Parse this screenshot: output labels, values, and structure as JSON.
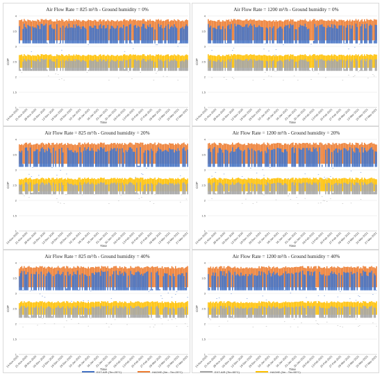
{
  "legend": [
    {
      "label": "EXT-AIR (Tin=25°C)",
      "color": "#4472c4"
    },
    {
      "label": "HAGHE (3m - Tin=25°C)",
      "color": "#ed7d31"
    },
    {
      "label": "EXT-AIR (Tin=55°C)",
      "color": "#a5a5a5"
    },
    {
      "label": "HAGHE (3m - Tin=55°C)",
      "color": "#ffc000"
    }
  ],
  "chart_data": [
    {
      "type": "bar",
      "title": "Air Flow Rate = 825 m³/h - Ground humidity = 0%",
      "xlabel": "Time",
      "ylabel": "COP",
      "ylim": [
        1,
        4
      ],
      "yticks": [
        "1",
        "1.5",
        "2",
        "2.5",
        "3",
        "3.5",
        "4"
      ],
      "x_tick_labels": [
        "14-Nov-2020",
        "21-Nov-2020",
        "28-Nov-2020",
        "05-Dec-2020",
        "12-Dec-2020",
        "19-Dec-2020",
        "26-Dec-2020",
        "02-Jan-2021",
        "09-Jan-2021",
        "16-Jan-2021",
        "23-Jan-2021",
        "30-Jan-2021",
        "06-Feb-2021",
        "13-Feb-2021",
        "20-Feb-2021",
        "27-Feb-2021",
        "06-Mar-2021",
        "13-Mar-2021",
        "20-Mar-2021",
        "27-Mar-2021"
      ],
      "grid": true,
      "series": [
        {
          "name": "EXT-AIR (Tin=25°C)",
          "color": "#4472c4",
          "typical_range": [
            3.2,
            3.75
          ],
          "min": 2.5
        },
        {
          "name": "HAGHE (3m - Tin=25°C)",
          "color": "#ed7d31",
          "typical_range": [
            3.65,
            3.9
          ]
        },
        {
          "name": "EXT-AIR (Tin=55°C)",
          "color": "#a5a5a5",
          "typical_range": [
            2.3,
            2.6
          ],
          "min": 1.9
        },
        {
          "name": "HAGHE (3m - Tin=55°C)",
          "color": "#ffc000",
          "typical_range": [
            2.55,
            2.75
          ]
        }
      ]
    },
    {
      "type": "bar",
      "title": "Air Flow Rate = 1200 m³/h - Ground humidity = 0%",
      "xlabel": "Time",
      "ylabel": "COP",
      "ylim": [
        1,
        4
      ],
      "yticks": [
        "1",
        "1.5",
        "2",
        "2.5",
        "3",
        "3.5",
        "4"
      ],
      "x_tick_labels": [
        "14-Nov-2020",
        "21-Nov-2020",
        "28-Nov-2020",
        "05-Dec-2020",
        "12-Dec-2020",
        "19-Dec-2020",
        "26-Dec-2020",
        "02-Jan-2021",
        "09-Jan-2021",
        "16-Jan-2021",
        "23-Jan-2021",
        "30-Jan-2021",
        "06-Feb-2021",
        "13-Feb-2021",
        "20-Feb-2021",
        "27-Feb-2021",
        "06-Mar-2021",
        "13-Mar-2021",
        "20-Mar-2021",
        "27-Mar-2021"
      ],
      "grid": true,
      "series": [
        {
          "name": "EXT-AIR (Tin=25°C)",
          "color": "#4472c4",
          "typical_range": [
            3.2,
            3.75
          ],
          "min": 2.5
        },
        {
          "name": "HAGHE (3m - Tin=25°C)",
          "color": "#ed7d31",
          "typical_range": [
            3.65,
            3.9
          ]
        },
        {
          "name": "EXT-AIR (Tin=55°C)",
          "color": "#a5a5a5",
          "typical_range": [
            2.3,
            2.6
          ],
          "min": 1.9
        },
        {
          "name": "HAGHE (3m - Tin=55°C)",
          "color": "#ffc000",
          "typical_range": [
            2.55,
            2.75
          ]
        }
      ]
    },
    {
      "type": "bar",
      "title": "Air Flow Rate = 825 m³/h - Ground humidity = 20%",
      "xlabel": "Time",
      "ylabel": "COP",
      "ylim": [
        1,
        4
      ],
      "yticks": [
        "1",
        "1.5",
        "2",
        "2.5",
        "3",
        "3.5",
        "4"
      ],
      "x_tick_labels": [
        "14-Nov-2020",
        "21-Nov-2020",
        "28-Nov-2020",
        "05-Dec-2020",
        "12-Dec-2020",
        "19-Dec-2020",
        "26-Dec-2020",
        "02-Jan-2021",
        "09-Jan-2021",
        "16-Jan-2021",
        "23-Jan-2021",
        "30-Jan-2021",
        "06-Feb-2021",
        "13-Feb-2021",
        "20-Feb-2021",
        "27-Feb-2021",
        "06-Mar-2021",
        "13-Mar-2021",
        "20-Mar-2021",
        "27-Mar-2021"
      ],
      "grid": true,
      "series": [
        {
          "name": "EXT-AIR (Tin=25°C)",
          "color": "#4472c4",
          "typical_range": [
            3.2,
            3.75
          ],
          "min": 2.5
        },
        {
          "name": "HAGHE (3m - Tin=25°C)",
          "color": "#ed7d31",
          "typical_range": [
            3.65,
            3.9
          ]
        },
        {
          "name": "EXT-AIR (Tin=55°C)",
          "color": "#a5a5a5",
          "typical_range": [
            2.3,
            2.6
          ],
          "min": 1.9
        },
        {
          "name": "HAGHE (3m - Tin=55°C)",
          "color": "#ffc000",
          "typical_range": [
            2.55,
            2.75
          ]
        }
      ]
    },
    {
      "type": "bar",
      "title": "Air Flow Rate = 1200 m³/h - Ground humidity = 20%",
      "xlabel": "Time",
      "ylabel": "COP",
      "ylim": [
        1,
        4
      ],
      "yticks": [
        "1",
        "1.5",
        "2",
        "2.5",
        "3",
        "3.5",
        "4"
      ],
      "x_tick_labels": [
        "14-Nov-2020",
        "21-Nov-2020",
        "28-Nov-2020",
        "05-Dec-2020",
        "12-Dec-2020",
        "19-Dec-2020",
        "26-Dec-2020",
        "02-Jan-2021",
        "09-Jan-2021",
        "16-Jan-2021",
        "23-Jan-2021",
        "30-Jan-2021",
        "06-Feb-2021",
        "13-Feb-2021",
        "20-Feb-2021",
        "27-Feb-2021",
        "06-Mar-2021",
        "13-Mar-2021",
        "20-Mar-2021",
        "27-Mar-2021"
      ],
      "grid": true,
      "series": [
        {
          "name": "EXT-AIR (Tin=25°C)",
          "color": "#4472c4",
          "typical_range": [
            3.2,
            3.75
          ],
          "min": 2.5
        },
        {
          "name": "HAGHE (3m - Tin=25°C)",
          "color": "#ed7d31",
          "typical_range": [
            3.65,
            3.9
          ]
        },
        {
          "name": "EXT-AIR (Tin=55°C)",
          "color": "#a5a5a5",
          "typical_range": [
            2.3,
            2.6
          ],
          "min": 1.9
        },
        {
          "name": "HAGHE (3m - Tin=55°C)",
          "color": "#ffc000",
          "typical_range": [
            2.55,
            2.75
          ]
        }
      ]
    },
    {
      "type": "bar",
      "title": "Air Flow Rate = 825 m³/h - Ground humidity = 40%",
      "xlabel": "Time",
      "ylabel": "COP",
      "ylim": [
        1,
        4
      ],
      "yticks": [
        "1",
        "1.5",
        "2",
        "2.5",
        "3",
        "3.5",
        "4"
      ],
      "x_tick_labels": [
        "14-Nov-2020",
        "21-Nov-2020",
        "28-Nov-2020",
        "05-Dec-2020",
        "12-Dec-2020",
        "19-Dec-2020",
        "26-Dec-2020",
        "02-Jan-2021",
        "09-Jan-2021",
        "16-Jan-2021",
        "23-Jan-2021",
        "30-Jan-2021",
        "06-Feb-2021",
        "13-Feb-2021",
        "20-Feb-2021",
        "27-Feb-2021",
        "06-Mar-2021",
        "13-Mar-2021",
        "20-Mar-2021",
        "27-Mar-2021"
      ],
      "grid": true,
      "series": [
        {
          "name": "EXT-AIR (Tin=25°C)",
          "color": "#4472c4",
          "typical_range": [
            3.2,
            3.75
          ],
          "min": 2.5
        },
        {
          "name": "HAGHE (3m - Tin=25°C)",
          "color": "#ed7d31",
          "typical_range": [
            3.65,
            3.9
          ]
        },
        {
          "name": "EXT-AIR (Tin=55°C)",
          "color": "#a5a5a5",
          "typical_range": [
            2.3,
            2.6
          ],
          "min": 1.9
        },
        {
          "name": "HAGHE (3m - Tin=55°C)",
          "color": "#ffc000",
          "typical_range": [
            2.55,
            2.75
          ]
        }
      ]
    },
    {
      "type": "bar",
      "title": "Air Flow Rate = 1200 m³/h - Ground humidity = 40%",
      "xlabel": "Time",
      "ylabel": "COP",
      "ylim": [
        1,
        4
      ],
      "yticks": [
        "1",
        "1.5",
        "2",
        "2.5",
        "3",
        "3.5",
        "4"
      ],
      "x_tick_labels": [
        "14-Nov-2020",
        "21-Nov-2020",
        "28-Nov-2020",
        "05-Dec-2020",
        "12-Dec-2020",
        "19-Dec-2020",
        "26-Dec-2020",
        "02-Jan-2021",
        "09-Jan-2021",
        "16-Jan-2021",
        "23-Jan-2021",
        "30-Jan-2021",
        "06-Feb-2021",
        "13-Feb-2021",
        "20-Feb-2021",
        "27-Feb-2021",
        "06-Mar-2021",
        "13-Mar-2021",
        "20-Mar-2021",
        "27-Mar-2021"
      ],
      "grid": true,
      "series": [
        {
          "name": "EXT-AIR (Tin=25°C)",
          "color": "#4472c4",
          "typical_range": [
            3.2,
            3.75
          ],
          "min": 2.5
        },
        {
          "name": "HAGHE (3m - Tin=25°C)",
          "color": "#ed7d31",
          "typical_range": [
            3.65,
            3.9
          ]
        },
        {
          "name": "EXT-AIR (Tin=55°C)",
          "color": "#a5a5a5",
          "typical_range": [
            2.3,
            2.6
          ],
          "min": 1.9
        },
        {
          "name": "HAGHE (3m - Tin=55°C)",
          "color": "#ffc000",
          "typical_range": [
            2.55,
            2.75
          ]
        }
      ]
    }
  ]
}
